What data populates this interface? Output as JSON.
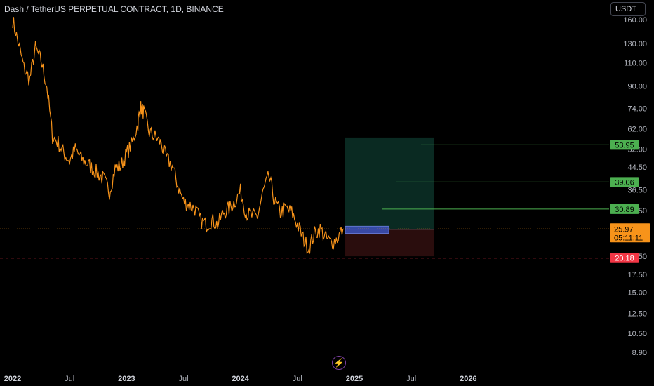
{
  "header": {
    "title": "Dash / TetherUS PERPETUAL CONTRACT, 1D, BINANCE",
    "currency": "USDT"
  },
  "chart_data": {
    "type": "line",
    "scale": "log",
    "series_color": "#f7931a",
    "y_ticks": [
      "160.00",
      "130.00",
      "110.00",
      "90.00",
      "74.00",
      "62.00",
      "52.00",
      "44.50",
      "36.50",
      "30.50",
      "25.00",
      "20.50",
      "17.50",
      "15.00",
      "12.50",
      "10.50",
      "8.90"
    ],
    "x_ticks": [
      {
        "label": "2022",
        "year": true
      },
      {
        "label": "Jul",
        "year": false
      },
      {
        "label": "2023",
        "year": true
      },
      {
        "label": "Jul",
        "year": false
      },
      {
        "label": "2024",
        "year": true
      },
      {
        "label": "Jul",
        "year": false
      },
      {
        "label": "2025",
        "year": true
      },
      {
        "label": "Jul",
        "year": false
      },
      {
        "label": "2026",
        "year": true
      }
    ],
    "price_path": [
      [
        2022.0,
        160
      ],
      [
        2022.05,
        130
      ],
      [
        2022.1,
        105
      ],
      [
        2022.15,
        95
      ],
      [
        2022.2,
        125
      ],
      [
        2022.25,
        112
      ],
      [
        2022.3,
        90
      ],
      [
        2022.35,
        58
      ],
      [
        2022.4,
        55
      ],
      [
        2022.45,
        50
      ],
      [
        2022.5,
        47
      ],
      [
        2022.55,
        52
      ],
      [
        2022.6,
        48
      ],
      [
        2022.65,
        46
      ],
      [
        2022.7,
        44
      ],
      [
        2022.75,
        42
      ],
      [
        2022.8,
        40
      ],
      [
        2022.85,
        36
      ],
      [
        2022.9,
        44
      ],
      [
        2022.95,
        45
      ],
      [
        2023.0,
        50
      ],
      [
        2023.05,
        55
      ],
      [
        2023.1,
        65
      ],
      [
        2023.12,
        75
      ],
      [
        2023.15,
        72
      ],
      [
        2023.2,
        60
      ],
      [
        2023.25,
        58
      ],
      [
        2023.3,
        55
      ],
      [
        2023.35,
        48
      ],
      [
        2023.4,
        45
      ],
      [
        2023.45,
        38
      ],
      [
        2023.5,
        33
      ],
      [
        2023.55,
        32
      ],
      [
        2023.6,
        31
      ],
      [
        2023.65,
        28
      ],
      [
        2023.7,
        27
      ],
      [
        2023.75,
        28
      ],
      [
        2023.8,
        27
      ],
      [
        2023.85,
        30
      ],
      [
        2023.9,
        31
      ],
      [
        2023.95,
        33
      ],
      [
        2024.0,
        36
      ],
      [
        2024.05,
        30
      ],
      [
        2024.1,
        29
      ],
      [
        2024.15,
        29
      ],
      [
        2024.2,
        36
      ],
      [
        2024.25,
        41
      ],
      [
        2024.3,
        33
      ],
      [
        2024.35,
        30
      ],
      [
        2024.4,
        31
      ],
      [
        2024.45,
        30
      ],
      [
        2024.5,
        27
      ],
      [
        2024.55,
        24
      ],
      [
        2024.6,
        22
      ],
      [
        2024.65,
        25
      ],
      [
        2024.7,
        26
      ],
      [
        2024.75,
        24
      ],
      [
        2024.8,
        23
      ],
      [
        2024.85,
        24
      ],
      [
        2024.9,
        26
      ]
    ],
    "price_range": [
      20,
      185
    ],
    "current_price": {
      "label": "25.97",
      "countdown": "05:11:11",
      "value": 25.97,
      "color": "#f7931a"
    },
    "stop_level": {
      "label": "20.18",
      "value": 20.18,
      "color": "#f23645"
    },
    "targets": [
      {
        "label": "30.89",
        "value": 30.89
      },
      {
        "label": "39.06",
        "value": 39.06
      },
      {
        "label": "53.95",
        "value": 53.95
      }
    ],
    "entry_zone": [
      25.0,
      26.6
    ],
    "position_box": {
      "top": 57.5,
      "entry": 25.9,
      "bottom": 20.5,
      "x_start": 2024.92,
      "x_end": 2025.7
    },
    "target_color": "#4caf50",
    "profit_color": "#0a2a22",
    "loss_color": "#2a0d0d",
    "entry_color": "#3a4fb5"
  }
}
